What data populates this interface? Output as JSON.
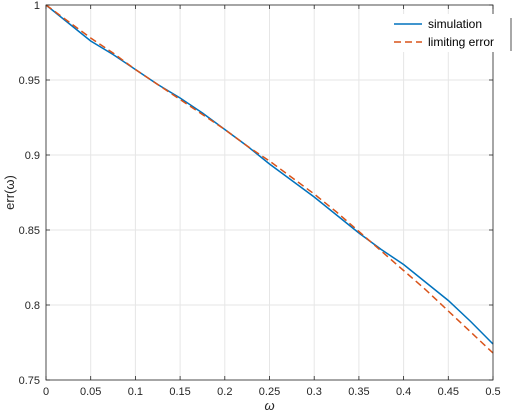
{
  "chart_data": {
    "type": "line",
    "xlabel": "ω",
    "ylabel": "err(ω)",
    "xlim": [
      0,
      0.5
    ],
    "ylim": [
      0.75,
      1
    ],
    "x_ticks": [
      "0",
      "0.05",
      "0.1",
      "0.15",
      "0.2",
      "0.25",
      "0.3",
      "0.35",
      "0.4",
      "0.45",
      "0.5"
    ],
    "y_ticks": [
      "0.75",
      "0.8",
      "0.85",
      "0.9",
      "0.95",
      "1"
    ],
    "grid": true,
    "legend_position": "top-right",
    "series": [
      {
        "name": "simulation",
        "color": "#0072BD",
        "style": "solid",
        "x": [
          0,
          0.025,
          0.05,
          0.075,
          0.1,
          0.125,
          0.15,
          0.175,
          0.2,
          0.225,
          0.25,
          0.275,
          0.3,
          0.325,
          0.35,
          0.375,
          0.4,
          0.425,
          0.45,
          0.475,
          0.5
        ],
        "y": [
          1.0,
          0.988,
          0.976,
          0.967,
          0.957,
          0.947,
          0.938,
          0.928,
          0.917,
          0.906,
          0.894,
          0.883,
          0.872,
          0.86,
          0.848,
          0.837,
          0.827,
          0.815,
          0.803,
          0.789,
          0.774
        ]
      },
      {
        "name": "limiting error",
        "color": "#D95319",
        "style": "dashed",
        "x": [
          0,
          0.025,
          0.05,
          0.075,
          0.1,
          0.125,
          0.15,
          0.175,
          0.2,
          0.225,
          0.25,
          0.275,
          0.3,
          0.325,
          0.35,
          0.375,
          0.4,
          0.425,
          0.45,
          0.475,
          0.5
        ],
        "y": [
          1.0,
          0.989,
          0.978,
          0.968,
          0.957,
          0.947,
          0.937,
          0.927,
          0.917,
          0.906,
          0.896,
          0.885,
          0.874,
          0.862,
          0.849,
          0.836,
          0.823,
          0.81,
          0.796,
          0.782,
          0.768
        ]
      }
    ]
  }
}
